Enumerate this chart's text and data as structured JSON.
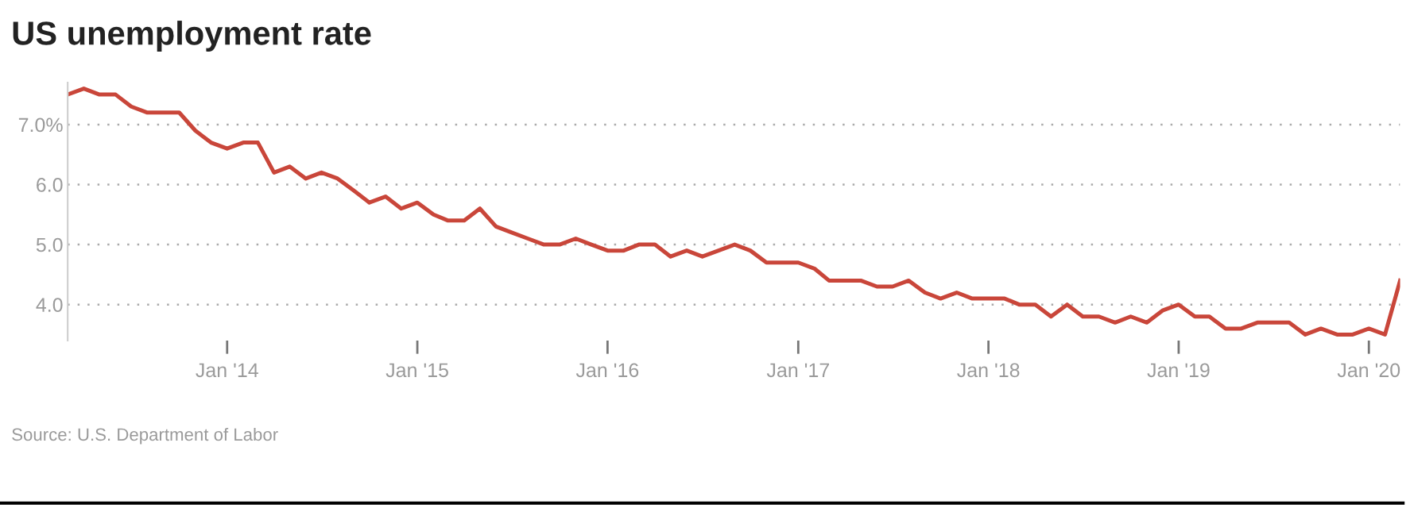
{
  "chart_data": {
    "type": "line",
    "title": "US unemployment rate",
    "annotations": [
      "Source: U.S. Department of Labor"
    ],
    "x": [
      "2013-03",
      "2013-04",
      "2013-05",
      "2013-06",
      "2013-07",
      "2013-08",
      "2013-09",
      "2013-10",
      "2013-11",
      "2013-12",
      "2014-01",
      "2014-02",
      "2014-03",
      "2014-04",
      "2014-05",
      "2014-06",
      "2014-07",
      "2014-08",
      "2014-09",
      "2014-10",
      "2014-11",
      "2014-12",
      "2015-01",
      "2015-02",
      "2015-03",
      "2015-04",
      "2015-05",
      "2015-06",
      "2015-07",
      "2015-08",
      "2015-09",
      "2015-10",
      "2015-11",
      "2015-12",
      "2016-01",
      "2016-02",
      "2016-03",
      "2016-04",
      "2016-05",
      "2016-06",
      "2016-07",
      "2016-08",
      "2016-09",
      "2016-10",
      "2016-11",
      "2016-12",
      "2017-01",
      "2017-02",
      "2017-03",
      "2017-04",
      "2017-05",
      "2017-06",
      "2017-07",
      "2017-08",
      "2017-09",
      "2017-10",
      "2017-11",
      "2017-12",
      "2018-01",
      "2018-02",
      "2018-03",
      "2018-04",
      "2018-05",
      "2018-06",
      "2018-07",
      "2018-08",
      "2018-09",
      "2018-10",
      "2018-11",
      "2018-12",
      "2019-01",
      "2019-02",
      "2019-03",
      "2019-04",
      "2019-05",
      "2019-06",
      "2019-07",
      "2019-08",
      "2019-09",
      "2019-10",
      "2019-11",
      "2019-12",
      "2020-01",
      "2020-02",
      "2020-03"
    ],
    "series": [
      {
        "color": "#c9463a",
        "values": [
          7.5,
          7.6,
          7.5,
          7.5,
          7.3,
          7.2,
          7.2,
          7.2,
          6.9,
          6.7,
          6.6,
          6.7,
          6.7,
          6.2,
          6.3,
          6.1,
          6.2,
          6.1,
          5.9,
          5.7,
          5.8,
          5.6,
          5.7,
          5.5,
          5.4,
          5.4,
          5.6,
          5.3,
          5.2,
          5.1,
          5.0,
          5.0,
          5.1,
          5.0,
          4.9,
          4.9,
          5.0,
          5.0,
          4.8,
          4.9,
          4.8,
          4.9,
          5.0,
          4.9,
          4.7,
          4.7,
          4.7,
          4.6,
          4.4,
          4.4,
          4.4,
          4.3,
          4.3,
          4.4,
          4.2,
          4.1,
          4.2,
          4.1,
          4.1,
          4.1,
          4.0,
          4.0,
          3.8,
          4.0,
          3.8,
          3.8,
          3.7,
          3.8,
          3.7,
          3.9,
          4.0,
          3.8,
          3.8,
          3.6,
          3.6,
          3.7,
          3.7,
          3.7,
          3.5,
          3.6,
          3.5,
          3.5,
          3.6,
          3.5,
          4.4
        ]
      }
    ],
    "xlim": [
      "2013-03",
      "2020-03"
    ],
    "xticks": [
      {
        "value": "2014-01",
        "label": "Jan '14"
      },
      {
        "value": "2015-01",
        "label": "Jan '15"
      },
      {
        "value": "2016-01",
        "label": "Jan '16"
      },
      {
        "value": "2017-01",
        "label": "Jan '17"
      },
      {
        "value": "2018-01",
        "label": "Jan '18"
      },
      {
        "value": "2019-01",
        "label": "Jan '19"
      },
      {
        "value": "2020-01",
        "label": "Jan '20"
      }
    ],
    "yticks": [
      {
        "value": 4,
        "label": "4.0"
      },
      {
        "value": 5,
        "label": "5.0"
      },
      {
        "value": 6,
        "label": "6.0"
      },
      {
        "value": 7,
        "label": "7.0%"
      }
    ],
    "ylim": [
      3.4,
      7.7
    ],
    "grid": "y",
    "marker": "none",
    "line_style": "solid"
  }
}
